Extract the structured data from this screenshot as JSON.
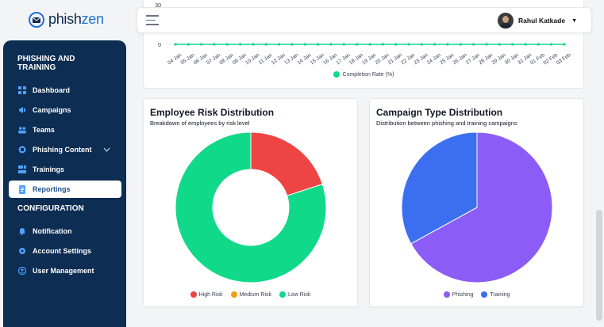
{
  "app": {
    "logo_part1": "phish",
    "logo_part2": "zen",
    "brand_color": "#1e6fd9",
    "sidebar_bg": "#0d2d52"
  },
  "sidebar": {
    "section1": "PHISHING AND TRAINING",
    "section2": "CONFIGURATION",
    "items": [
      {
        "label": "Dashboard",
        "icon": "dashboard-icon"
      },
      {
        "label": "Campaigns",
        "icon": "campaigns-icon"
      },
      {
        "label": "Teams",
        "icon": "teams-icon"
      },
      {
        "label": "Phishing Content",
        "icon": "phishing-content-icon"
      },
      {
        "label": "Trainings",
        "icon": "trainings-icon"
      },
      {
        "label": "Reportings",
        "icon": "reportings-icon",
        "active": true
      }
    ],
    "config_items": [
      {
        "label": "Notification",
        "icon": "bell-icon"
      },
      {
        "label": "Account Settings",
        "icon": "settings-icon"
      },
      {
        "label": "User Management",
        "icon": "user-management-icon"
      }
    ]
  },
  "header": {
    "user_name": "Rahul Katkade"
  },
  "completion_chart": {
    "legend": "Completion Rate (%)",
    "color": "#10d98a"
  },
  "risk_card": {
    "title": "Employee Risk Distribution",
    "subtitle": "Breakdown of employees by risk level",
    "legend": [
      "High Risk",
      "Medium Risk",
      "Low Risk"
    ]
  },
  "campaign_card": {
    "title": "Campaign Type Distribution",
    "subtitle": "Distribution between phishing and training campaigns",
    "legend": [
      "Phishing",
      "Training"
    ]
  },
  "chart_data": [
    {
      "type": "line",
      "x": [
        "04 Jan",
        "05 Jan",
        "06 Jan",
        "07 Jan",
        "08 Jan",
        "09 Jan",
        "10 Jan",
        "11 Jan",
        "12 Jan",
        "13 Jan",
        "14 Jan",
        "15 Jan",
        "16 Jan",
        "17 Jan",
        "18 Jan",
        "19 Jan",
        "20 Jan",
        "21 Jan",
        "22 Jan",
        "23 Jan",
        "24 Jan",
        "25 Jan",
        "26 Jan",
        "27 Jan",
        "28 Jan",
        "29 Jan",
        "30 Jan",
        "31 Jan",
        "01 Feb",
        "02 Feb",
        "03 Feb"
      ],
      "series": [
        {
          "name": "Completion Rate (%)",
          "values": [
            0,
            0,
            0,
            0,
            0,
            0,
            0,
            0,
            0,
            0,
            0,
            0,
            0,
            0,
            0,
            0,
            0,
            0,
            0,
            0,
            0,
            0,
            0,
            0,
            0,
            0,
            0,
            0,
            0,
            0,
            0
          ],
          "color": "#10d98a"
        }
      ],
      "yticks": [
        0,
        30
      ],
      "ylim": [
        0,
        30
      ]
    },
    {
      "type": "pie",
      "donut": true,
      "labels": [
        "High Risk",
        "Medium Risk",
        "Low Risk"
      ],
      "values": [
        20,
        0,
        80
      ],
      "colors": [
        "#ef4444",
        "#f59e0b",
        "#10d98a"
      ]
    },
    {
      "type": "pie",
      "labels": [
        "Phishing",
        "Training"
      ],
      "values": [
        67,
        33
      ],
      "colors": [
        "#8b5cf6",
        "#3b6ff0"
      ]
    }
  ]
}
